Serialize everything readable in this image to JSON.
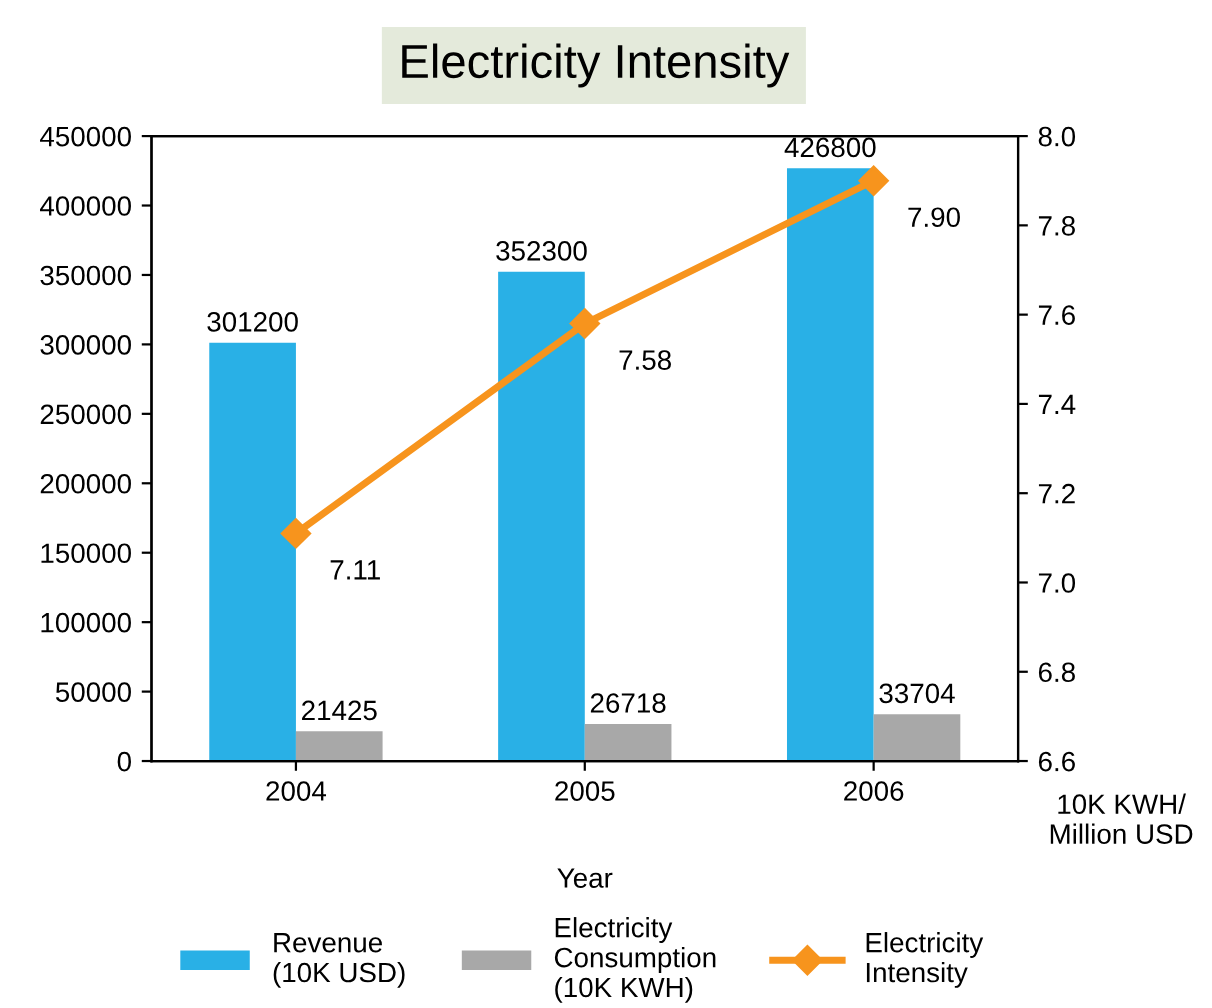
{
  "chart_data": {
    "type": "bar",
    "title": "Electricity Intensity",
    "xlabel": "Year",
    "y2label": "10K KWH/\nMillion USD",
    "categories": [
      "2004",
      "2005",
      "2006"
    ],
    "series": [
      {
        "name": "Revenue\n(10K USD)",
        "color": "#29b0e6",
        "values": [
          301200,
          352300,
          426800
        ],
        "value_labels": [
          "301200",
          "352300",
          "426800"
        ]
      },
      {
        "name": "Electricity\nConsumption\n(10K KWH)",
        "color": "#a8a8a8",
        "values": [
          21425,
          26718,
          33704
        ],
        "value_labels": [
          "21425",
          "26718",
          "33704"
        ]
      },
      {
        "name": "Electricity\nIntensity",
        "type": "line",
        "axis": "y2",
        "color": "#f7941d",
        "marker": "diamond",
        "values": [
          7.11,
          7.58,
          7.9
        ],
        "value_labels": [
          "7.11",
          "7.58",
          "7.90"
        ]
      }
    ],
    "ylim": [
      0,
      450000
    ],
    "yticks": [
      0,
      50000,
      100000,
      150000,
      200000,
      250000,
      300000,
      350000,
      400000,
      450000
    ],
    "y2lim": [
      6.6,
      8.0
    ],
    "y2ticks": [
      {
        "value": 6.6,
        "label": "6.6"
      },
      {
        "value": 6.8,
        "label": "6.8"
      },
      {
        "value": 7.0,
        "label": "7.0"
      },
      {
        "value": 7.2,
        "label": "7.2"
      },
      {
        "value": 7.4,
        "label": "7.4"
      },
      {
        "value": 7.6,
        "label": "7.6"
      },
      {
        "value": 7.8,
        "label": "7.8"
      },
      {
        "value": 8.0,
        "label": "8.0"
      }
    ],
    "grid": false,
    "legend": "bottom"
  }
}
